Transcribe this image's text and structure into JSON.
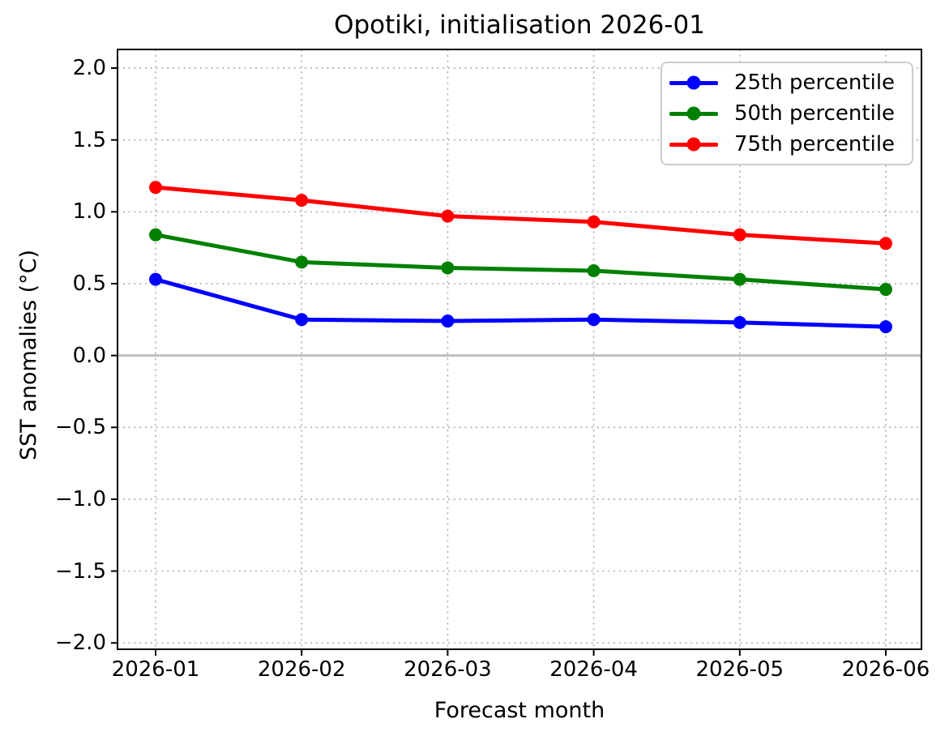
{
  "chart_data": {
    "type": "line",
    "title": "Opotiki, initialisation 2026-01",
    "xlabel": "Forecast month",
    "ylabel": "SST anomalies (°C)",
    "categories": [
      "2026-01",
      "2026-02",
      "2026-03",
      "2026-04",
      "2026-05",
      "2026-06"
    ],
    "series": [
      {
        "name": "25th percentile",
        "color": "#0000ff",
        "values": [
          0.53,
          0.25,
          0.24,
          0.25,
          0.23,
          0.2
        ]
      },
      {
        "name": "50th percentile",
        "color": "#008000",
        "values": [
          0.84,
          0.65,
          0.61,
          0.59,
          0.53,
          0.46
        ]
      },
      {
        "name": "75th percentile",
        "color": "#ff0000",
        "values": [
          1.17,
          1.08,
          0.97,
          0.93,
          0.84,
          0.78
        ]
      }
    ],
    "ylim": [
      -2.0,
      2.0
    ],
    "yticks": [
      2.0,
      1.5,
      1.0,
      0.5,
      0.0,
      -0.5,
      -1.0,
      -1.5,
      -2.0
    ],
    "ytick_labels": [
      "2.0",
      "1.5",
      "1.0",
      "0.5",
      "0.0",
      "−0.5",
      "−1.0",
      "−1.5",
      "−2.0"
    ],
    "grid": true,
    "grid_style": "dotted",
    "grid_color": "#b0b0b0",
    "zero_line_value": 0.0,
    "zero_line_color": "#bfbfbf",
    "legend_position": "upper right",
    "marker": "circle",
    "background_color": "#ffffff"
  }
}
